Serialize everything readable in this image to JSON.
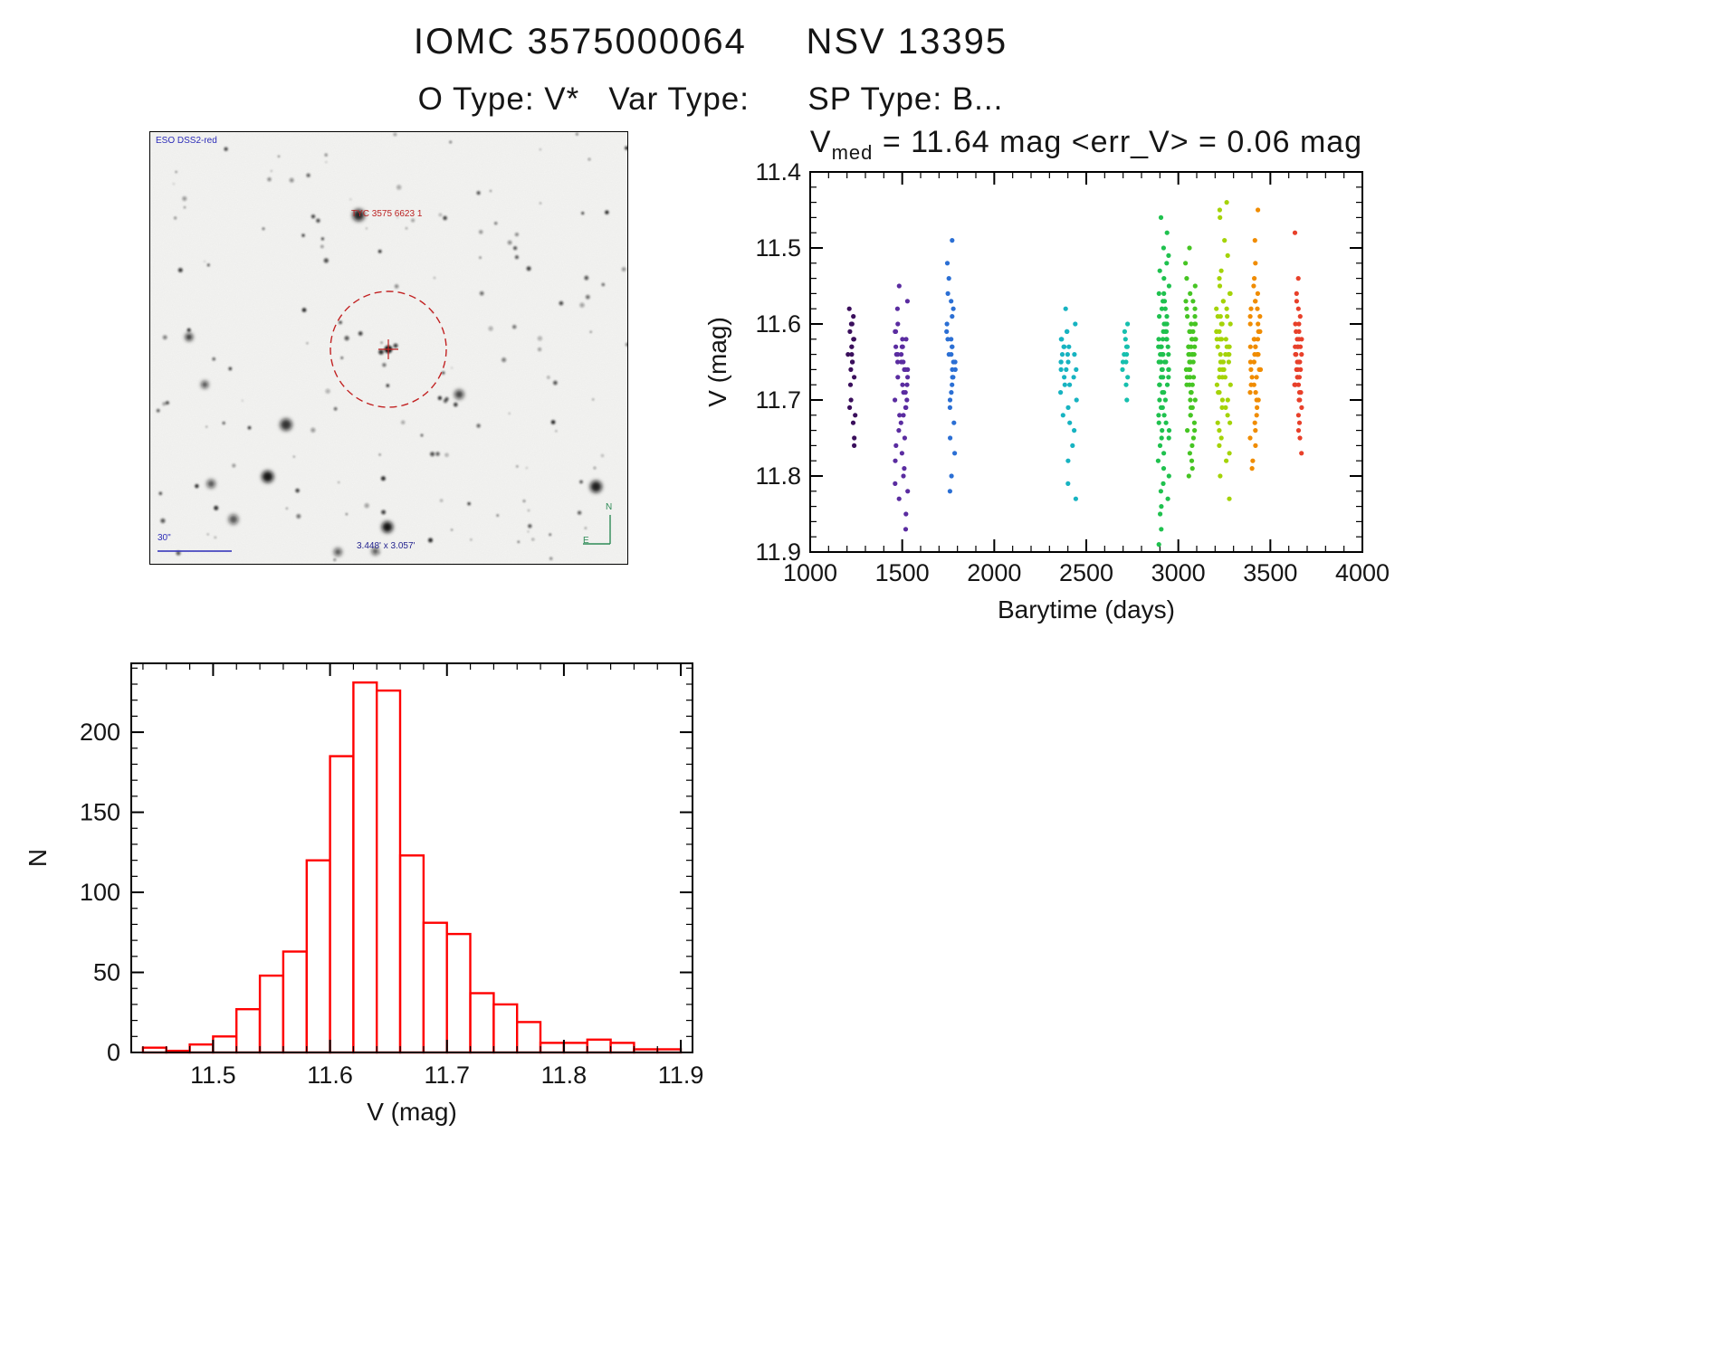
{
  "header": {
    "title": "IOMC 3575000064     NSV 13395",
    "subtitle": "O Type: V*   Var Type:      SP Type: B..."
  },
  "finder": {
    "survey": "ESO DSS2-red",
    "target_label": "TYC 3575 6623 1",
    "scale_label": "30\"",
    "fov_label": "3.448' x 3.057'",
    "compass_n": "N",
    "compass_e": "E"
  },
  "chart_data": [
    {
      "type": "scatter",
      "name": "lightcurve",
      "title": {
        "prefix": "V",
        "sub": "med",
        "rest": " = 11.64 mag <err_V> = 0.06 mag"
      },
      "stats": {
        "v_med_mag": 11.64,
        "err_v_mag": 0.06
      },
      "xlabel": "Barytime (days)",
      "ylabel": "V (mag)",
      "xlim": [
        1000,
        4000
      ],
      "ylim": [
        11.4,
        11.9
      ],
      "y_axis_faint_down": true,
      "xticks": [
        1000,
        1500,
        2000,
        2500,
        3000,
        3500,
        4000
      ],
      "yticks": [
        11.4,
        11.5,
        11.6,
        11.7,
        11.8,
        11.9
      ],
      "color_by": "time (rainbow)",
      "clusters": [
        {
          "t_center": 1225,
          "t_spread": 20,
          "color": "#3a0f5c",
          "v": [
            11.58,
            11.59,
            11.6,
            11.6,
            11.61,
            11.62,
            11.62,
            11.63,
            11.63,
            11.64,
            11.64,
            11.65,
            11.65,
            11.66,
            11.67,
            11.68,
            11.7,
            11.71,
            11.72,
            11.73,
            11.75,
            11.76
          ]
        },
        {
          "t_center": 1495,
          "t_spread": 35,
          "color": "#5a2ca0",
          "v": [
            11.55,
            11.57,
            11.58,
            11.6,
            11.61,
            11.61,
            11.62,
            11.62,
            11.63,
            11.63,
            11.63,
            11.64,
            11.64,
            11.64,
            11.65,
            11.65,
            11.65,
            11.66,
            11.66,
            11.66,
            11.67,
            11.67,
            11.68,
            11.68,
            11.69,
            11.69,
            11.7,
            11.7,
            11.71,
            11.71,
            11.72,
            11.72,
            11.73,
            11.74,
            11.75,
            11.76,
            11.77,
            11.78,
            11.79,
            11.8,
            11.81,
            11.82,
            11.83,
            11.85,
            11.87
          ]
        },
        {
          "t_center": 1765,
          "t_spread": 25,
          "color": "#2b6fd4",
          "v": [
            11.49,
            11.52,
            11.54,
            11.56,
            11.57,
            11.58,
            11.59,
            11.6,
            11.61,
            11.62,
            11.62,
            11.63,
            11.63,
            11.64,
            11.64,
            11.65,
            11.65,
            11.66,
            11.66,
            11.67,
            11.67,
            11.68,
            11.69,
            11.7,
            11.71,
            11.73,
            11.75,
            11.77,
            11.8,
            11.82
          ]
        },
        {
          "t_center": 2405,
          "t_spread": 45,
          "color": "#17b3c1",
          "v": [
            11.58,
            11.6,
            11.61,
            11.61,
            11.62,
            11.62,
            11.63,
            11.63,
            11.63,
            11.64,
            11.64,
            11.64,
            11.65,
            11.65,
            11.65,
            11.66,
            11.66,
            11.66,
            11.67,
            11.67,
            11.68,
            11.68,
            11.69,
            11.7,
            11.71,
            11.72,
            11.73,
            11.74,
            11.76,
            11.78,
            11.81,
            11.83
          ]
        },
        {
          "t_center": 2710,
          "t_spread": 15,
          "color": "#16bfae",
          "v": [
            11.6,
            11.61,
            11.62,
            11.63,
            11.63,
            11.64,
            11.64,
            11.65,
            11.65,
            11.66,
            11.67,
            11.68,
            11.7
          ]
        },
        {
          "t_center": 2920,
          "t_spread": 30,
          "color": "#1fc14e",
          "v": [
            11.46,
            11.48,
            11.5,
            11.51,
            11.52,
            11.53,
            11.54,
            11.55,
            11.56,
            11.56,
            11.57,
            11.57,
            11.58,
            11.58,
            11.59,
            11.59,
            11.6,
            11.6,
            11.6,
            11.61,
            11.61,
            11.61,
            11.62,
            11.62,
            11.62,
            11.62,
            11.63,
            11.63,
            11.63,
            11.63,
            11.64,
            11.64,
            11.64,
            11.64,
            11.64,
            11.65,
            11.65,
            11.65,
            11.65,
            11.66,
            11.66,
            11.66,
            11.66,
            11.67,
            11.67,
            11.67,
            11.68,
            11.68,
            11.68,
            11.69,
            11.69,
            11.7,
            11.7,
            11.71,
            11.71,
            11.72,
            11.72,
            11.73,
            11.73,
            11.74,
            11.74,
            11.75,
            11.75,
            11.76,
            11.77,
            11.78,
            11.79,
            11.8,
            11.81,
            11.82,
            11.83,
            11.84,
            11.85,
            11.87,
            11.89
          ]
        },
        {
          "t_center": 3065,
          "t_spread": 30,
          "color": "#46c523",
          "v": [
            11.5,
            11.52,
            11.54,
            11.55,
            11.56,
            11.57,
            11.57,
            11.58,
            11.58,
            11.59,
            11.59,
            11.6,
            11.6,
            11.6,
            11.61,
            11.61,
            11.61,
            11.62,
            11.62,
            11.62,
            11.62,
            11.63,
            11.63,
            11.63,
            11.63,
            11.64,
            11.64,
            11.64,
            11.64,
            11.64,
            11.65,
            11.65,
            11.65,
            11.65,
            11.66,
            11.66,
            11.66,
            11.67,
            11.67,
            11.67,
            11.68,
            11.68,
            11.68,
            11.69,
            11.69,
            11.7,
            11.7,
            11.71,
            11.71,
            11.72,
            11.72,
            11.73,
            11.74,
            11.74,
            11.75,
            11.76,
            11.77,
            11.78,
            11.79,
            11.8
          ]
        },
        {
          "t_center": 3245,
          "t_spread": 40,
          "color": "#a4d308",
          "v": [
            11.44,
            11.45,
            11.46,
            11.49,
            11.51,
            11.53,
            11.54,
            11.55,
            11.56,
            11.56,
            11.57,
            11.57,
            11.58,
            11.58,
            11.59,
            11.59,
            11.59,
            11.6,
            11.6,
            11.6,
            11.61,
            11.61,
            11.61,
            11.62,
            11.62,
            11.62,
            11.62,
            11.63,
            11.63,
            11.63,
            11.63,
            11.64,
            11.64,
            11.64,
            11.64,
            11.65,
            11.65,
            11.65,
            11.65,
            11.66,
            11.66,
            11.66,
            11.67,
            11.67,
            11.67,
            11.68,
            11.68,
            11.69,
            11.69,
            11.7,
            11.7,
            11.71,
            11.71,
            11.72,
            11.73,
            11.73,
            11.74,
            11.75,
            11.76,
            11.77,
            11.78,
            11.8,
            11.83
          ]
        },
        {
          "t_center": 3420,
          "t_spread": 30,
          "color": "#f08c00",
          "v": [
            11.45,
            11.49,
            11.52,
            11.54,
            11.55,
            11.56,
            11.57,
            11.57,
            11.58,
            11.58,
            11.59,
            11.59,
            11.6,
            11.6,
            11.61,
            11.61,
            11.61,
            11.62,
            11.62,
            11.62,
            11.63,
            11.63,
            11.63,
            11.64,
            11.64,
            11.64,
            11.64,
            11.65,
            11.65,
            11.65,
            11.66,
            11.66,
            11.66,
            11.67,
            11.67,
            11.68,
            11.68,
            11.69,
            11.69,
            11.7,
            11.7,
            11.71,
            11.72,
            11.73,
            11.74,
            11.75,
            11.76,
            11.78,
            11.79
          ]
        },
        {
          "t_center": 3650,
          "t_spread": 20,
          "color": "#e8402a",
          "v": [
            11.48,
            11.54,
            11.56,
            11.57,
            11.58,
            11.59,
            11.6,
            11.6,
            11.61,
            11.61,
            11.62,
            11.62,
            11.62,
            11.63,
            11.63,
            11.63,
            11.63,
            11.64,
            11.64,
            11.64,
            11.64,
            11.65,
            11.65,
            11.65,
            11.65,
            11.66,
            11.66,
            11.66,
            11.67,
            11.67,
            11.67,
            11.68,
            11.68,
            11.68,
            11.69,
            11.69,
            11.7,
            11.7,
            11.71,
            11.72,
            11.73,
            11.74,
            11.75,
            11.77
          ]
        }
      ]
    },
    {
      "type": "bar",
      "name": "v-histogram",
      "xlabel": "V (mag)",
      "ylabel": "N",
      "bin_start": 11.44,
      "bin_width": 0.02,
      "counts": [
        3,
        1,
        5,
        10,
        27,
        48,
        63,
        120,
        185,
        231,
        226,
        123,
        81,
        74,
        37,
        30,
        19,
        6,
        6,
        8,
        6,
        2,
        2
      ],
      "xticks": [
        11.5,
        11.6,
        11.7,
        11.8,
        11.9
      ],
      "yticks": [
        0,
        50,
        100,
        150,
        200
      ],
      "xlim": [
        11.43,
        11.91
      ],
      "ylim": [
        0,
        243
      ],
      "bar_stroke": "#ff0000",
      "bar_fill": "#ffffff"
    }
  ]
}
